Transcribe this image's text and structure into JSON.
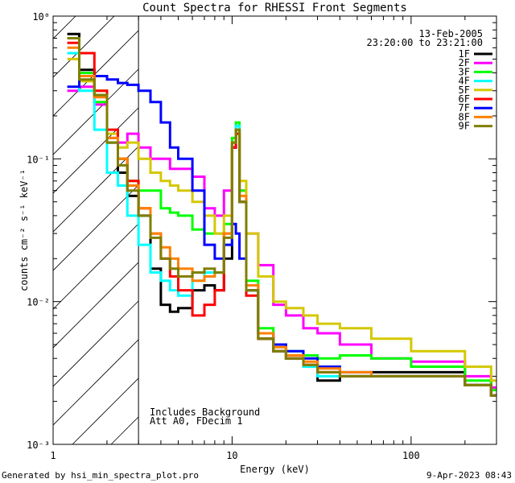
{
  "chart_data": {
    "type": "line",
    "title": "Count Spectra for RHESSI Front Segments",
    "xlabel": "Energy (keV)",
    "ylabel": "counts cm⁻² s⁻¹ keV⁻¹",
    "xscale": "log",
    "yscale": "log",
    "xlim": [
      1,
      300
    ],
    "ylim": [
      0.001,
      1
    ],
    "x_tick_labels": [
      "1",
      "10",
      "100"
    ],
    "y_tick_labels": [
      "10⁰",
      "10⁻¹",
      "10⁻²",
      "10⁻³"
    ],
    "legend": {
      "placement": "top-right",
      "date": "13-Feb-2005",
      "time_range": "23:20:00 to 23:21:00",
      "entries": [
        {
          "name": "1F",
          "color": "#000000"
        },
        {
          "name": "2F",
          "color": "#ff00ff"
        },
        {
          "name": "3F",
          "color": "#00ff00"
        },
        {
          "name": "4F",
          "color": "#00ffff"
        },
        {
          "name": "5F",
          "color": "#d4c800"
        },
        {
          "name": "6F",
          "color": "#ff0000"
        },
        {
          "name": "7F",
          "color": "#0000ff"
        },
        {
          "name": "8F",
          "color": "#ff8000"
        },
        {
          "name": "9F",
          "color": "#7f7f00"
        }
      ]
    },
    "attenuator_region": {
      "xmax_keV": 3,
      "style": "hatched"
    },
    "annotations": [
      "Includes Background",
      "Att A0, FDecim 1"
    ],
    "series": [
      {
        "name": "1F",
        "color": "#000000",
        "x": [
          1.2,
          1.4,
          1.7,
          2.0,
          2.3,
          2.6,
          3.0,
          3.5,
          4.0,
          4.5,
          5.0,
          6.0,
          7.0,
          8.0,
          9.0,
          10.0,
          10.5,
          11.0,
          12.0,
          14.0,
          17.0,
          20.0,
          25.0,
          30.0,
          40.0,
          60.0,
          100.0,
          200.0,
          280.0
        ],
        "y": [
          0.75,
          0.42,
          0.28,
          0.13,
          0.08,
          0.055,
          0.04,
          0.017,
          0.0095,
          0.0085,
          0.009,
          0.012,
          0.013,
          0.012,
          0.02,
          0.12,
          0.16,
          0.05,
          0.012,
          0.0055,
          0.0045,
          0.004,
          0.0035,
          0.0028,
          0.003,
          0.0032,
          0.0032,
          0.0026,
          0.0022
        ]
      },
      {
        "name": "2F",
        "color": "#ff00ff",
        "x": [
          1.2,
          1.4,
          1.7,
          2.0,
          2.3,
          2.6,
          3.0,
          3.5,
          4.0,
          4.5,
          5.0,
          6.0,
          7.0,
          8.0,
          9.0,
          10.0,
          10.5,
          11.0,
          12.0,
          14.0,
          17.0,
          20.0,
          25.0,
          30.0,
          40.0,
          60.0,
          100.0,
          200.0,
          280.0
        ],
        "y": [
          0.3,
          0.32,
          0.24,
          0.14,
          0.13,
          0.15,
          0.12,
          0.1,
          0.1,
          0.085,
          0.085,
          0.075,
          0.045,
          0.04,
          0.06,
          0.12,
          0.15,
          0.06,
          0.03,
          0.018,
          0.0095,
          0.008,
          0.0065,
          0.006,
          0.005,
          0.004,
          0.0038,
          0.003,
          0.0025
        ]
      },
      {
        "name": "3F",
        "color": "#00ff00",
        "x": [
          1.2,
          1.4,
          1.7,
          2.0,
          2.3,
          2.6,
          3.0,
          3.5,
          4.0,
          4.5,
          5.0,
          6.0,
          7.0,
          8.0,
          9.0,
          10.0,
          10.5,
          11.0,
          12.0,
          14.0,
          17.0,
          20.0,
          25.0,
          30.0,
          40.0,
          60.0,
          100.0,
          200.0,
          280.0
        ],
        "y": [
          0.7,
          0.4,
          0.25,
          0.13,
          0.1,
          0.07,
          0.06,
          0.06,
          0.045,
          0.042,
          0.04,
          0.032,
          0.03,
          0.03,
          0.035,
          0.14,
          0.18,
          0.06,
          0.014,
          0.0065,
          0.005,
          0.0045,
          0.0042,
          0.004,
          0.0042,
          0.004,
          0.0035,
          0.0028,
          0.0024
        ]
      },
      {
        "name": "4F",
        "color": "#00ffff",
        "x": [
          1.2,
          1.4,
          1.7,
          2.0,
          2.3,
          2.6,
          3.0,
          3.5,
          4.0,
          4.5,
          5.0,
          6.0,
          7.0,
          8.0,
          9.0,
          10.0,
          10.5,
          11.0,
          12.0,
          14.0,
          17.0,
          20.0,
          25.0,
          30.0,
          40.0,
          60.0,
          100.0,
          200.0,
          280.0
        ],
        "y": [
          0.55,
          0.3,
          0.16,
          0.08,
          0.065,
          0.04,
          0.025,
          0.016,
          0.014,
          0.012,
          0.011,
          0.014,
          0.016,
          0.016,
          0.025,
          0.13,
          0.17,
          0.05,
          0.012,
          0.006,
          0.0045,
          0.004,
          0.0035,
          0.003,
          0.003,
          0.003,
          0.003,
          0.0026,
          0.0022
        ]
      },
      {
        "name": "5F",
        "color": "#d4c800",
        "x": [
          1.2,
          1.4,
          1.7,
          2.0,
          2.3,
          2.6,
          3.0,
          3.5,
          4.0,
          4.5,
          5.0,
          6.0,
          7.0,
          8.0,
          9.0,
          10.0,
          10.5,
          11.0,
          12.0,
          14.0,
          17.0,
          20.0,
          25.0,
          30.0,
          40.0,
          60.0,
          100.0,
          200.0,
          280.0
        ],
        "y": [
          0.5,
          0.35,
          0.3,
          0.15,
          0.12,
          0.13,
          0.1,
          0.08,
          0.07,
          0.065,
          0.06,
          0.05,
          0.04,
          0.03,
          0.04,
          0.13,
          0.15,
          0.07,
          0.03,
          0.015,
          0.01,
          0.009,
          0.008,
          0.007,
          0.0065,
          0.0055,
          0.0045,
          0.0035,
          0.0028
        ]
      },
      {
        "name": "6F",
        "color": "#ff0000",
        "x": [
          1.2,
          1.4,
          1.7,
          2.0,
          2.3,
          2.6,
          3.0,
          3.5,
          4.0,
          4.5,
          5.0,
          6.0,
          7.0,
          8.0,
          9.0,
          10.0,
          10.5,
          11.0,
          12.0,
          14.0,
          17.0,
          20.0,
          25.0,
          30.0,
          40.0,
          60.0,
          100.0,
          200.0,
          280.0
        ],
        "y": [
          0.65,
          0.55,
          0.3,
          0.16,
          0.1,
          0.07,
          0.045,
          0.03,
          0.02,
          0.015,
          0.012,
          0.008,
          0.0095,
          0.012,
          0.03,
          0.12,
          0.15,
          0.05,
          0.011,
          0.0055,
          0.0045,
          0.004,
          0.0036,
          0.0032,
          0.003,
          0.003,
          0.003,
          0.0026,
          0.0022
        ]
      },
      {
        "name": "7F",
        "color": "#0000ff",
        "x": [
          1.2,
          1.4,
          1.7,
          2.0,
          2.3,
          2.6,
          3.0,
          3.5,
          4.0,
          4.5,
          5.0,
          6.0,
          7.0,
          8.0,
          9.0,
          10.0,
          10.5,
          11.0,
          12.0,
          14.0,
          17.0,
          20.0,
          25.0,
          30.0,
          40.0,
          60.0,
          100.0,
          200.0,
          280.0
        ],
        "y": [
          0.32,
          0.38,
          0.38,
          0.36,
          0.34,
          0.33,
          0.3,
          0.25,
          0.18,
          0.12,
          0.1,
          0.06,
          0.025,
          0.02,
          0.025,
          0.035,
          0.03,
          0.02,
          0.012,
          0.006,
          0.005,
          0.0045,
          0.004,
          0.0035,
          0.0032,
          0.003,
          0.003,
          0.0026,
          0.0022
        ]
      },
      {
        "name": "8F",
        "color": "#ff8000",
        "x": [
          1.2,
          1.4,
          1.7,
          2.0,
          2.3,
          2.6,
          3.0,
          3.5,
          4.0,
          4.5,
          5.0,
          6.0,
          7.0,
          8.0,
          9.0,
          10.0,
          10.5,
          11.0,
          12.0,
          14.0,
          17.0,
          20.0,
          25.0,
          30.0,
          40.0,
          60.0,
          100.0,
          200.0,
          280.0
        ],
        "y": [
          0.6,
          0.38,
          0.27,
          0.14,
          0.1,
          0.065,
          0.045,
          0.03,
          0.024,
          0.02,
          0.017,
          0.014,
          0.015,
          0.016,
          0.03,
          0.13,
          0.16,
          0.055,
          0.013,
          0.006,
          0.0048,
          0.0042,
          0.0038,
          0.0034,
          0.0032,
          0.003,
          0.003,
          0.0026,
          0.0022
        ]
      },
      {
        "name": "9F",
        "color": "#7f7f00",
        "x": [
          1.2,
          1.4,
          1.7,
          2.0,
          2.3,
          2.6,
          3.0,
          3.5,
          4.0,
          4.5,
          5.0,
          6.0,
          7.0,
          8.0,
          9.0,
          10.0,
          10.5,
          11.0,
          12.0,
          14.0,
          17.0,
          20.0,
          25.0,
          30.0,
          40.0,
          60.0,
          100.0,
          200.0,
          280.0
        ],
        "y": [
          0.7,
          0.36,
          0.28,
          0.13,
          0.09,
          0.06,
          0.04,
          0.028,
          0.02,
          0.017,
          0.015,
          0.016,
          0.017,
          0.016,
          0.028,
          0.13,
          0.16,
          0.05,
          0.012,
          0.0055,
          0.0045,
          0.004,
          0.0036,
          0.0032,
          0.003,
          0.003,
          0.003,
          0.0026,
          0.0022
        ]
      }
    ]
  },
  "footer": {
    "generated_by": "Generated by hsi_min_spectra_plot.pro",
    "timestamp": "9-Apr-2023 08:43"
  }
}
